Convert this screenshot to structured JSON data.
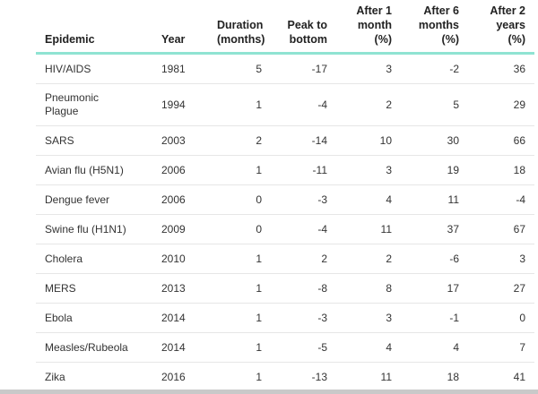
{
  "table": {
    "headers": [
      [
        "Epidemic"
      ],
      [
        "Year"
      ],
      [
        "Duration",
        "(months)"
      ],
      [
        "Peak to",
        "bottom"
      ],
      [
        "After 1",
        "month",
        "(%)"
      ],
      [
        "After 6",
        "months",
        "(%)"
      ],
      [
        "After 2",
        "years",
        "(%)"
      ]
    ],
    "rows": [
      [
        "HIV/AIDS",
        1981,
        5,
        -17,
        3,
        -2,
        36
      ],
      [
        [
          "Pneumonic",
          "Plague"
        ],
        1994,
        1,
        -4,
        2,
        5,
        29
      ],
      [
        "SARS",
        2003,
        2,
        -14,
        10,
        30,
        66
      ],
      [
        "Avian flu (H5N1)",
        2006,
        1,
        -11,
        3,
        19,
        18
      ],
      [
        "Dengue fever",
        2006,
        0,
        -3,
        4,
        11,
        -4
      ],
      [
        "Swine flu (H1N1)",
        2009,
        0,
        -4,
        11,
        37,
        67
      ],
      [
        "Cholera",
        2010,
        1,
        2,
        2,
        -6,
        3
      ],
      [
        "MERS",
        2013,
        1,
        -8,
        8,
        17,
        27
      ],
      [
        "Ebola",
        2014,
        1,
        -3,
        3,
        -1,
        0
      ],
      [
        "Measles/Rubeola",
        2014,
        1,
        -5,
        4,
        4,
        7
      ],
      [
        "Zika",
        2016,
        1,
        -13,
        11,
        18,
        41
      ]
    ]
  }
}
